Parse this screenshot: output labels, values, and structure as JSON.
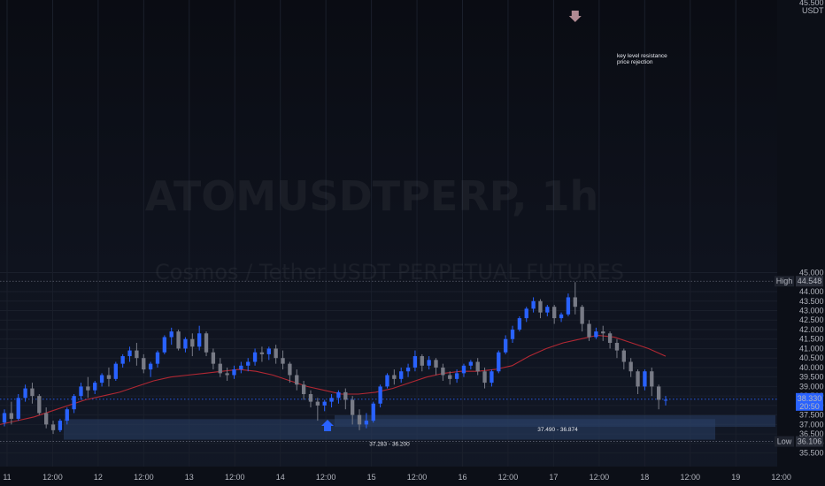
{
  "chart_data": {
    "type": "candlestick",
    "symbol_watermark": "ATOMUSDTPERP, 1h",
    "subtitle_watermark": "Cosmos / Tether USDT PERPETUAL FUTURES",
    "currency": "USDT",
    "ylim": [
      35.3,
      45.6
    ],
    "y_ticks": [
      "35.500",
      "36.000",
      "36.500",
      "37.000",
      "37.500",
      "38.000",
      "38.500",
      "39.000",
      "39.500",
      "40.000",
      "40.500",
      "41.000",
      "41.500",
      "42.000",
      "42.500",
      "43.000",
      "43.500",
      "44.000",
      "45.000"
    ],
    "y_top_partial": "45.500",
    "x_ticks": [
      "11",
      "12:00",
      "12",
      "12:00",
      "13",
      "12:00",
      "14",
      "12:00",
      "15",
      "12:00",
      "16",
      "12:00",
      "17",
      "12:00",
      "18",
      "12:00",
      "19",
      "12:00"
    ],
    "high": {
      "label": "High",
      "value": "44.548",
      "price": 44.548
    },
    "low": {
      "label": "Low",
      "value": "36.106",
      "price": 36.106
    },
    "current": {
      "price_text": "38.330",
      "countdown": "20:50",
      "price": 38.33
    },
    "zones": [
      {
        "label": "37.283 - 36.200",
        "top": 37.283,
        "bottom": 36.2
      },
      {
        "label": "37.490 - 36.874",
        "top": 37.49,
        "bottom": 36.874
      }
    ],
    "annotation": {
      "lines": [
        "key level resistance",
        "price rejection"
      ]
    },
    "colors": {
      "up": "#2962ff",
      "down": "#787b86",
      "ma": "#b22833",
      "zone": "#2a3f66",
      "accent": "#2962ff",
      "marker_down": "#b08a93"
    },
    "ma": [
      37.0,
      37.2,
      37.4,
      37.7,
      38.0,
      38.3,
      38.5,
      38.7,
      39.0,
      39.3,
      39.5,
      39.6,
      39.7,
      39.8,
      39.9,
      39.8,
      39.6,
      39.3,
      39.0,
      38.8,
      38.6,
      38.6,
      38.7,
      38.9,
      39.2,
      39.5,
      39.7,
      39.8,
      39.8,
      39.9,
      40.1,
      40.6,
      41.0,
      41.3,
      41.5,
      41.7,
      41.6,
      41.3,
      41.0,
      40.6
    ],
    "candles": [
      [
        37.1,
        37.8,
        37.6,
        36.9
      ],
      [
        37.6,
        38.2,
        37.3,
        37.0
      ],
      [
        37.3,
        38.6,
        38.4,
        37.2
      ],
      [
        38.4,
        39.1,
        38.9,
        38.2
      ],
      [
        38.9,
        39.2,
        38.5,
        38.1
      ],
      [
        38.5,
        38.6,
        37.6,
        37.5
      ],
      [
        37.6,
        37.9,
        37.0,
        36.8
      ],
      [
        37.0,
        37.2,
        36.7,
        36.5
      ],
      [
        36.7,
        37.3,
        37.2,
        36.6
      ],
      [
        37.2,
        37.9,
        37.8,
        37.0
      ],
      [
        37.8,
        38.6,
        38.5,
        37.6
      ],
      [
        38.5,
        39.2,
        39.0,
        38.3
      ],
      [
        39.0,
        39.5,
        38.8,
        38.4
      ],
      [
        38.8,
        39.3,
        39.2,
        38.6
      ],
      [
        39.2,
        39.7,
        39.6,
        39.0
      ],
      [
        39.6,
        40.0,
        39.4,
        39.0
      ],
      [
        39.4,
        40.3,
        40.2,
        39.3
      ],
      [
        40.2,
        40.7,
        40.6,
        40.0
      ],
      [
        40.6,
        41.1,
        40.9,
        40.3
      ],
      [
        40.9,
        41.3,
        40.5,
        40.1
      ],
      [
        40.5,
        40.7,
        39.9,
        39.7
      ],
      [
        39.9,
        40.3,
        40.2,
        39.5
      ],
      [
        40.2,
        40.9,
        40.8,
        40.0
      ],
      [
        40.8,
        41.7,
        41.6,
        40.7
      ],
      [
        41.6,
        42.1,
        41.9,
        41.2
      ],
      [
        41.9,
        42.0,
        41.0,
        40.9
      ],
      [
        41.0,
        41.6,
        41.5,
        40.8
      ],
      [
        41.5,
        41.8,
        41.1,
        40.6
      ],
      [
        41.1,
        42.2,
        41.8,
        40.9
      ],
      [
        41.8,
        41.9,
        40.8,
        40.6
      ],
      [
        40.8,
        41.0,
        40.2,
        39.9
      ],
      [
        40.2,
        40.5,
        39.7,
        39.5
      ],
      [
        39.7,
        40.0,
        39.6,
        39.3
      ],
      [
        39.6,
        40.1,
        39.9,
        39.4
      ],
      [
        39.9,
        40.3,
        40.1,
        39.7
      ],
      [
        40.1,
        40.5,
        40.3,
        39.8
      ],
      [
        40.3,
        41.0,
        40.8,
        40.1
      ],
      [
        40.8,
        41.1,
        40.7,
        40.3
      ],
      [
        40.7,
        41.1,
        41.0,
        40.4
      ],
      [
        41.0,
        41.2,
        40.5,
        40.2
      ],
      [
        40.5,
        40.9,
        40.2,
        39.9
      ],
      [
        40.2,
        40.3,
        39.6,
        39.2
      ],
      [
        39.6,
        39.9,
        39.1,
        38.8
      ],
      [
        39.1,
        39.3,
        38.6,
        38.3
      ],
      [
        38.6,
        38.8,
        38.2,
        37.9
      ],
      [
        38.2,
        38.4,
        38.0,
        37.2
      ],
      [
        38.0,
        38.3,
        38.2,
        37.7
      ],
      [
        38.2,
        38.6,
        38.4,
        37.9
      ],
      [
        38.4,
        38.8,
        38.7,
        38.1
      ],
      [
        38.7,
        38.9,
        38.3,
        37.8
      ],
      [
        38.3,
        38.5,
        37.5,
        37.0
      ],
      [
        37.5,
        37.8,
        37.0,
        36.7
      ],
      [
        37.0,
        37.6,
        37.2,
        36.8
      ],
      [
        37.2,
        38.2,
        38.1,
        37.1
      ],
      [
        38.1,
        39.1,
        39.0,
        37.9
      ],
      [
        39.0,
        39.7,
        39.6,
        38.9
      ],
      [
        39.6,
        39.9,
        39.4,
        39.1
      ],
      [
        39.4,
        40.0,
        39.8,
        39.2
      ],
      [
        39.8,
        40.2,
        40.0,
        39.5
      ],
      [
        40.0,
        40.9,
        40.6,
        39.8
      ],
      [
        40.6,
        40.7,
        40.1,
        39.8
      ],
      [
        40.1,
        40.6,
        40.4,
        39.9
      ],
      [
        40.4,
        40.5,
        40.0,
        39.6
      ],
      [
        40.0,
        40.2,
        39.6,
        39.3
      ],
      [
        39.6,
        39.8,
        39.4,
        39.1
      ],
      [
        39.4,
        39.9,
        39.7,
        39.2
      ],
      [
        39.7,
        40.2,
        40.1,
        39.5
      ],
      [
        40.1,
        40.4,
        40.3,
        39.9
      ],
      [
        40.3,
        40.5,
        39.8,
        39.6
      ],
      [
        39.8,
        40.0,
        39.2,
        38.9
      ],
      [
        39.2,
        39.9,
        39.8,
        39.0
      ],
      [
        39.8,
        40.9,
        40.8,
        39.7
      ],
      [
        40.8,
        41.7,
        41.5,
        40.7
      ],
      [
        41.5,
        42.2,
        42.0,
        41.3
      ],
      [
        42.0,
        42.7,
        42.6,
        41.9
      ],
      [
        42.6,
        43.2,
        43.1,
        42.4
      ],
      [
        43.1,
        43.7,
        43.5,
        42.9
      ],
      [
        43.5,
        43.6,
        42.9,
        42.6
      ],
      [
        42.9,
        43.3,
        43.2,
        42.7
      ],
      [
        43.2,
        43.3,
        42.6,
        42.3
      ],
      [
        42.6,
        42.9,
        42.8,
        42.4
      ],
      [
        42.8,
        43.9,
        43.7,
        42.7
      ],
      [
        43.7,
        44.5,
        43.2,
        42.8
      ],
      [
        43.2,
        43.3,
        42.3,
        41.9
      ],
      [
        42.3,
        42.5,
        41.6,
        41.4
      ],
      [
        41.6,
        42.1,
        41.9,
        41.5
      ],
      [
        41.9,
        42.2,
        41.8,
        41.4
      ],
      [
        41.8,
        41.9,
        41.3,
        41.0
      ],
      [
        41.3,
        41.5,
        40.9,
        40.5
      ],
      [
        40.9,
        41.0,
        40.3,
        39.9
      ],
      [
        40.3,
        40.5,
        39.8,
        39.5
      ],
      [
        39.8,
        39.9,
        39.0,
        38.6
      ],
      [
        39.0,
        39.9,
        39.8,
        38.8
      ],
      [
        39.8,
        40.0,
        39.0,
        38.5
      ],
      [
        39.0,
        39.1,
        38.3,
        37.8
      ],
      [
        38.3,
        38.5,
        38.3,
        38.0
      ]
    ]
  }
}
